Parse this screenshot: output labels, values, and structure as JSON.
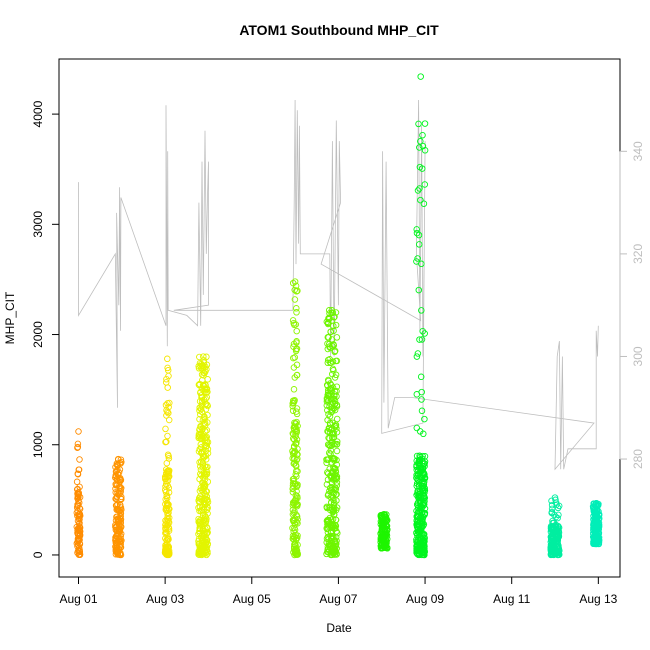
{
  "chart_data": {
    "type": "scatter",
    "title": "ATOM1 Southbound MHP_CIT",
    "xlabel": "Date",
    "ylabel": "MHP_CIT",
    "x_ticks": [
      "Aug 01",
      "Aug 03",
      "Aug 05",
      "Aug 07",
      "Aug 09",
      "Aug 11",
      "Aug 13"
    ],
    "x_tick_days": [
      1,
      3,
      5,
      7,
      9,
      11,
      13
    ],
    "xlim_days": [
      0.55,
      13.5
    ],
    "y_ticks": [
      0,
      1000,
      2000,
      3000,
      4000
    ],
    "ylim": [
      -200,
      4500
    ],
    "y2_ticks": [
      280,
      300,
      320,
      340
    ],
    "y2lim": [
      257,
      358
    ],
    "y2_axis_color": "#bebebe",
    "line_color": "#bebebe",
    "clusters": [
      {
        "day": 1.0,
        "width": 0.08,
        "low": 0,
        "dense_high": 620,
        "max": 1120,
        "color": "#ff8c00",
        "n": 90
      },
      {
        "day": 1.92,
        "width": 0.14,
        "low": 0,
        "dense_high": 720,
        "max": 870,
        "color": "#ff9400",
        "n": 160
      },
      {
        "day": 3.05,
        "width": 0.1,
        "low": 0,
        "dense_high": 800,
        "max": 1780,
        "color": "#f5e600",
        "n": 140
      },
      {
        "day": 3.88,
        "width": 0.22,
        "low": 0,
        "dense_high": 1400,
        "max": 1800,
        "color": "#e2f500",
        "n": 300
      },
      {
        "day": 6.0,
        "width": 0.12,
        "low": 0,
        "dense_high": 1200,
        "max": 2480,
        "color": "#8ef500",
        "n": 170
      },
      {
        "day": 6.85,
        "width": 0.25,
        "low": 0,
        "dense_high": 1500,
        "max": 2220,
        "color": "#6ef500",
        "n": 320
      },
      {
        "day": 8.05,
        "width": 0.16,
        "low": 60,
        "dense_high": 330,
        "max": 370,
        "color": "#1ef500",
        "n": 120
      },
      {
        "day": 8.9,
        "width": 0.2,
        "low": 0,
        "dense_high": 900,
        "max": 4340,
        "color": "#00f51e",
        "n": 300
      },
      {
        "day": 12.0,
        "width": 0.2,
        "low": 0,
        "dense_high": 260,
        "max": 520,
        "color": "#00eea0",
        "n": 170
      },
      {
        "day": 12.95,
        "width": 0.14,
        "low": 100,
        "dense_high": 380,
        "max": 470,
        "color": "#00eeb8",
        "n": 160
      }
    ],
    "secondary_series": [
      {
        "day": 1.0,
        "v": 334
      },
      {
        "day": 1.0,
        "v": 318
      },
      {
        "day": 1.0,
        "v": 308
      },
      {
        "day": 1.85,
        "v": 320
      },
      {
        "day": 1.9,
        "v": 290
      },
      {
        "day": 1.88,
        "v": 328
      },
      {
        "day": 1.93,
        "v": 310
      },
      {
        "day": 1.95,
        "v": 333
      },
      {
        "day": 1.97,
        "v": 305
      },
      {
        "day": 1.98,
        "v": 331
      },
      {
        "day": 3.02,
        "v": 306
      },
      {
        "day": 3.02,
        "v": 349
      },
      {
        "day": 3.05,
        "v": 302
      },
      {
        "day": 3.06,
        "v": 340
      },
      {
        "day": 3.07,
        "v": 309
      },
      {
        "day": 3.5,
        "v": 308
      },
      {
        "day": 3.75,
        "v": 306
      },
      {
        "day": 3.78,
        "v": 330
      },
      {
        "day": 3.82,
        "v": 306
      },
      {
        "day": 3.85,
        "v": 338
      },
      {
        "day": 3.88,
        "v": 312
      },
      {
        "day": 3.92,
        "v": 344
      },
      {
        "day": 3.95,
        "v": 320
      },
      {
        "day": 3.98,
        "v": 332
      },
      {
        "day": 4.0,
        "v": 338
      },
      {
        "day": 4.0,
        "v": 310
      },
      {
        "day": 3.2,
        "v": 309
      },
      {
        "day": 3.6,
        "v": 309
      },
      {
        "day": 5.5,
        "v": 309
      },
      {
        "day": 5.95,
        "v": 309
      },
      {
        "day": 5.98,
        "v": 330
      },
      {
        "day": 6.0,
        "v": 350
      },
      {
        "day": 6.02,
        "v": 318
      },
      {
        "day": 6.05,
        "v": 348
      },
      {
        "day": 6.08,
        "v": 322
      },
      {
        "day": 6.1,
        "v": 345
      },
      {
        "day": 6.12,
        "v": 320
      },
      {
        "day": 6.5,
        "v": 320
      },
      {
        "day": 6.8,
        "v": 320
      },
      {
        "day": 6.82,
        "v": 300
      },
      {
        "day": 6.86,
        "v": 342
      },
      {
        "day": 6.9,
        "v": 300
      },
      {
        "day": 6.95,
        "v": 346
      },
      {
        "day": 7.0,
        "v": 310
      },
      {
        "day": 7.02,
        "v": 342
      },
      {
        "day": 7.05,
        "v": 330
      },
      {
        "day": 6.6,
        "v": 318
      },
      {
        "day": 8.9,
        "v": 307
      },
      {
        "day": 8.8,
        "v": 320
      },
      {
        "day": 8.85,
        "v": 350
      },
      {
        "day": 8.88,
        "v": 305
      },
      {
        "day": 8.92,
        "v": 345
      },
      {
        "day": 8.95,
        "v": 300
      },
      {
        "day": 8.98,
        "v": 320
      },
      {
        "day": 9.0,
        "v": 342
      },
      {
        "day": 8.95,
        "v": 287
      },
      {
        "day": 8.0,
        "v": 285
      },
      {
        "day": 8.02,
        "v": 340
      },
      {
        "day": 8.05,
        "v": 291
      },
      {
        "day": 8.1,
        "v": 338
      },
      {
        "day": 8.15,
        "v": 286
      },
      {
        "day": 8.3,
        "v": 292
      },
      {
        "day": 8.7,
        "v": 292
      },
      {
        "day": 12.9,
        "v": 287
      },
      {
        "day": 12.0,
        "v": 278
      },
      {
        "day": 12.05,
        "v": 300
      },
      {
        "day": 12.1,
        "v": 303
      },
      {
        "day": 12.13,
        "v": 278
      },
      {
        "day": 12.17,
        "v": 300
      },
      {
        "day": 12.2,
        "v": 278
      },
      {
        "day": 12.3,
        "v": 282
      },
      {
        "day": 12.85,
        "v": 282
      },
      {
        "day": 12.95,
        "v": 282
      },
      {
        "day": 12.95,
        "v": 305
      },
      {
        "day": 12.98,
        "v": 300
      },
      {
        "day": 13.0,
        "v": 306
      }
    ]
  }
}
